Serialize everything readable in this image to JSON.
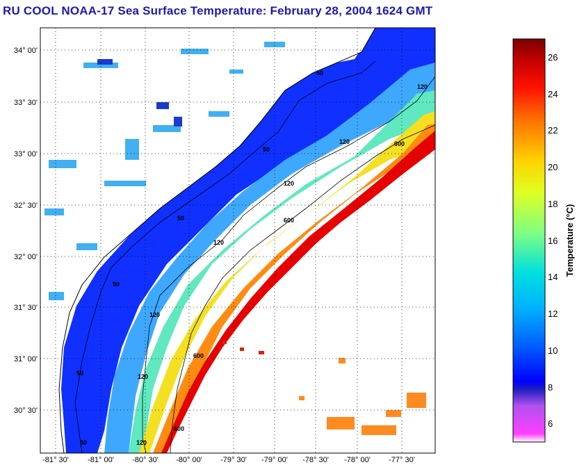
{
  "title": "RU COOL  NOAA-17  Sea Surface Temperature:  February 28, 2004 1624 GMT",
  "lat_ticks": [
    "34° 00'",
    "33° 30'",
    "33° 00'",
    "32° 30'",
    "32° 00'",
    "31° 30'",
    "31° 00'",
    "30° 30'"
  ],
  "lon_ticks": [
    "-81° 30'",
    "-81° 00'",
    "-80° 30'",
    "-80° 00'",
    "-79° 30'",
    "-79° 00'",
    "-78° 30'",
    "-78° 00'",
    "-77° 30'"
  ],
  "colorbar": {
    "label": "Temperature (°C)",
    "ticks": [
      "26",
      "24",
      "22",
      "20",
      "18",
      "16",
      "14",
      "12",
      "10",
      "8",
      "6"
    ],
    "range": [
      5,
      27
    ]
  },
  "contour_labels": [
    "50",
    "50",
    "50",
    "50",
    "50",
    "50",
    "120",
    "120",
    "120",
    "120",
    "120",
    "120",
    "120",
    "600",
    "600",
    "600",
    "600"
  ],
  "colors": {
    "title": "#1a1ab0",
    "land": "#ffffff",
    "cloud": "#ffffff",
    "gulf_stream": "#e60000",
    "shelf": "#1030ff"
  }
}
